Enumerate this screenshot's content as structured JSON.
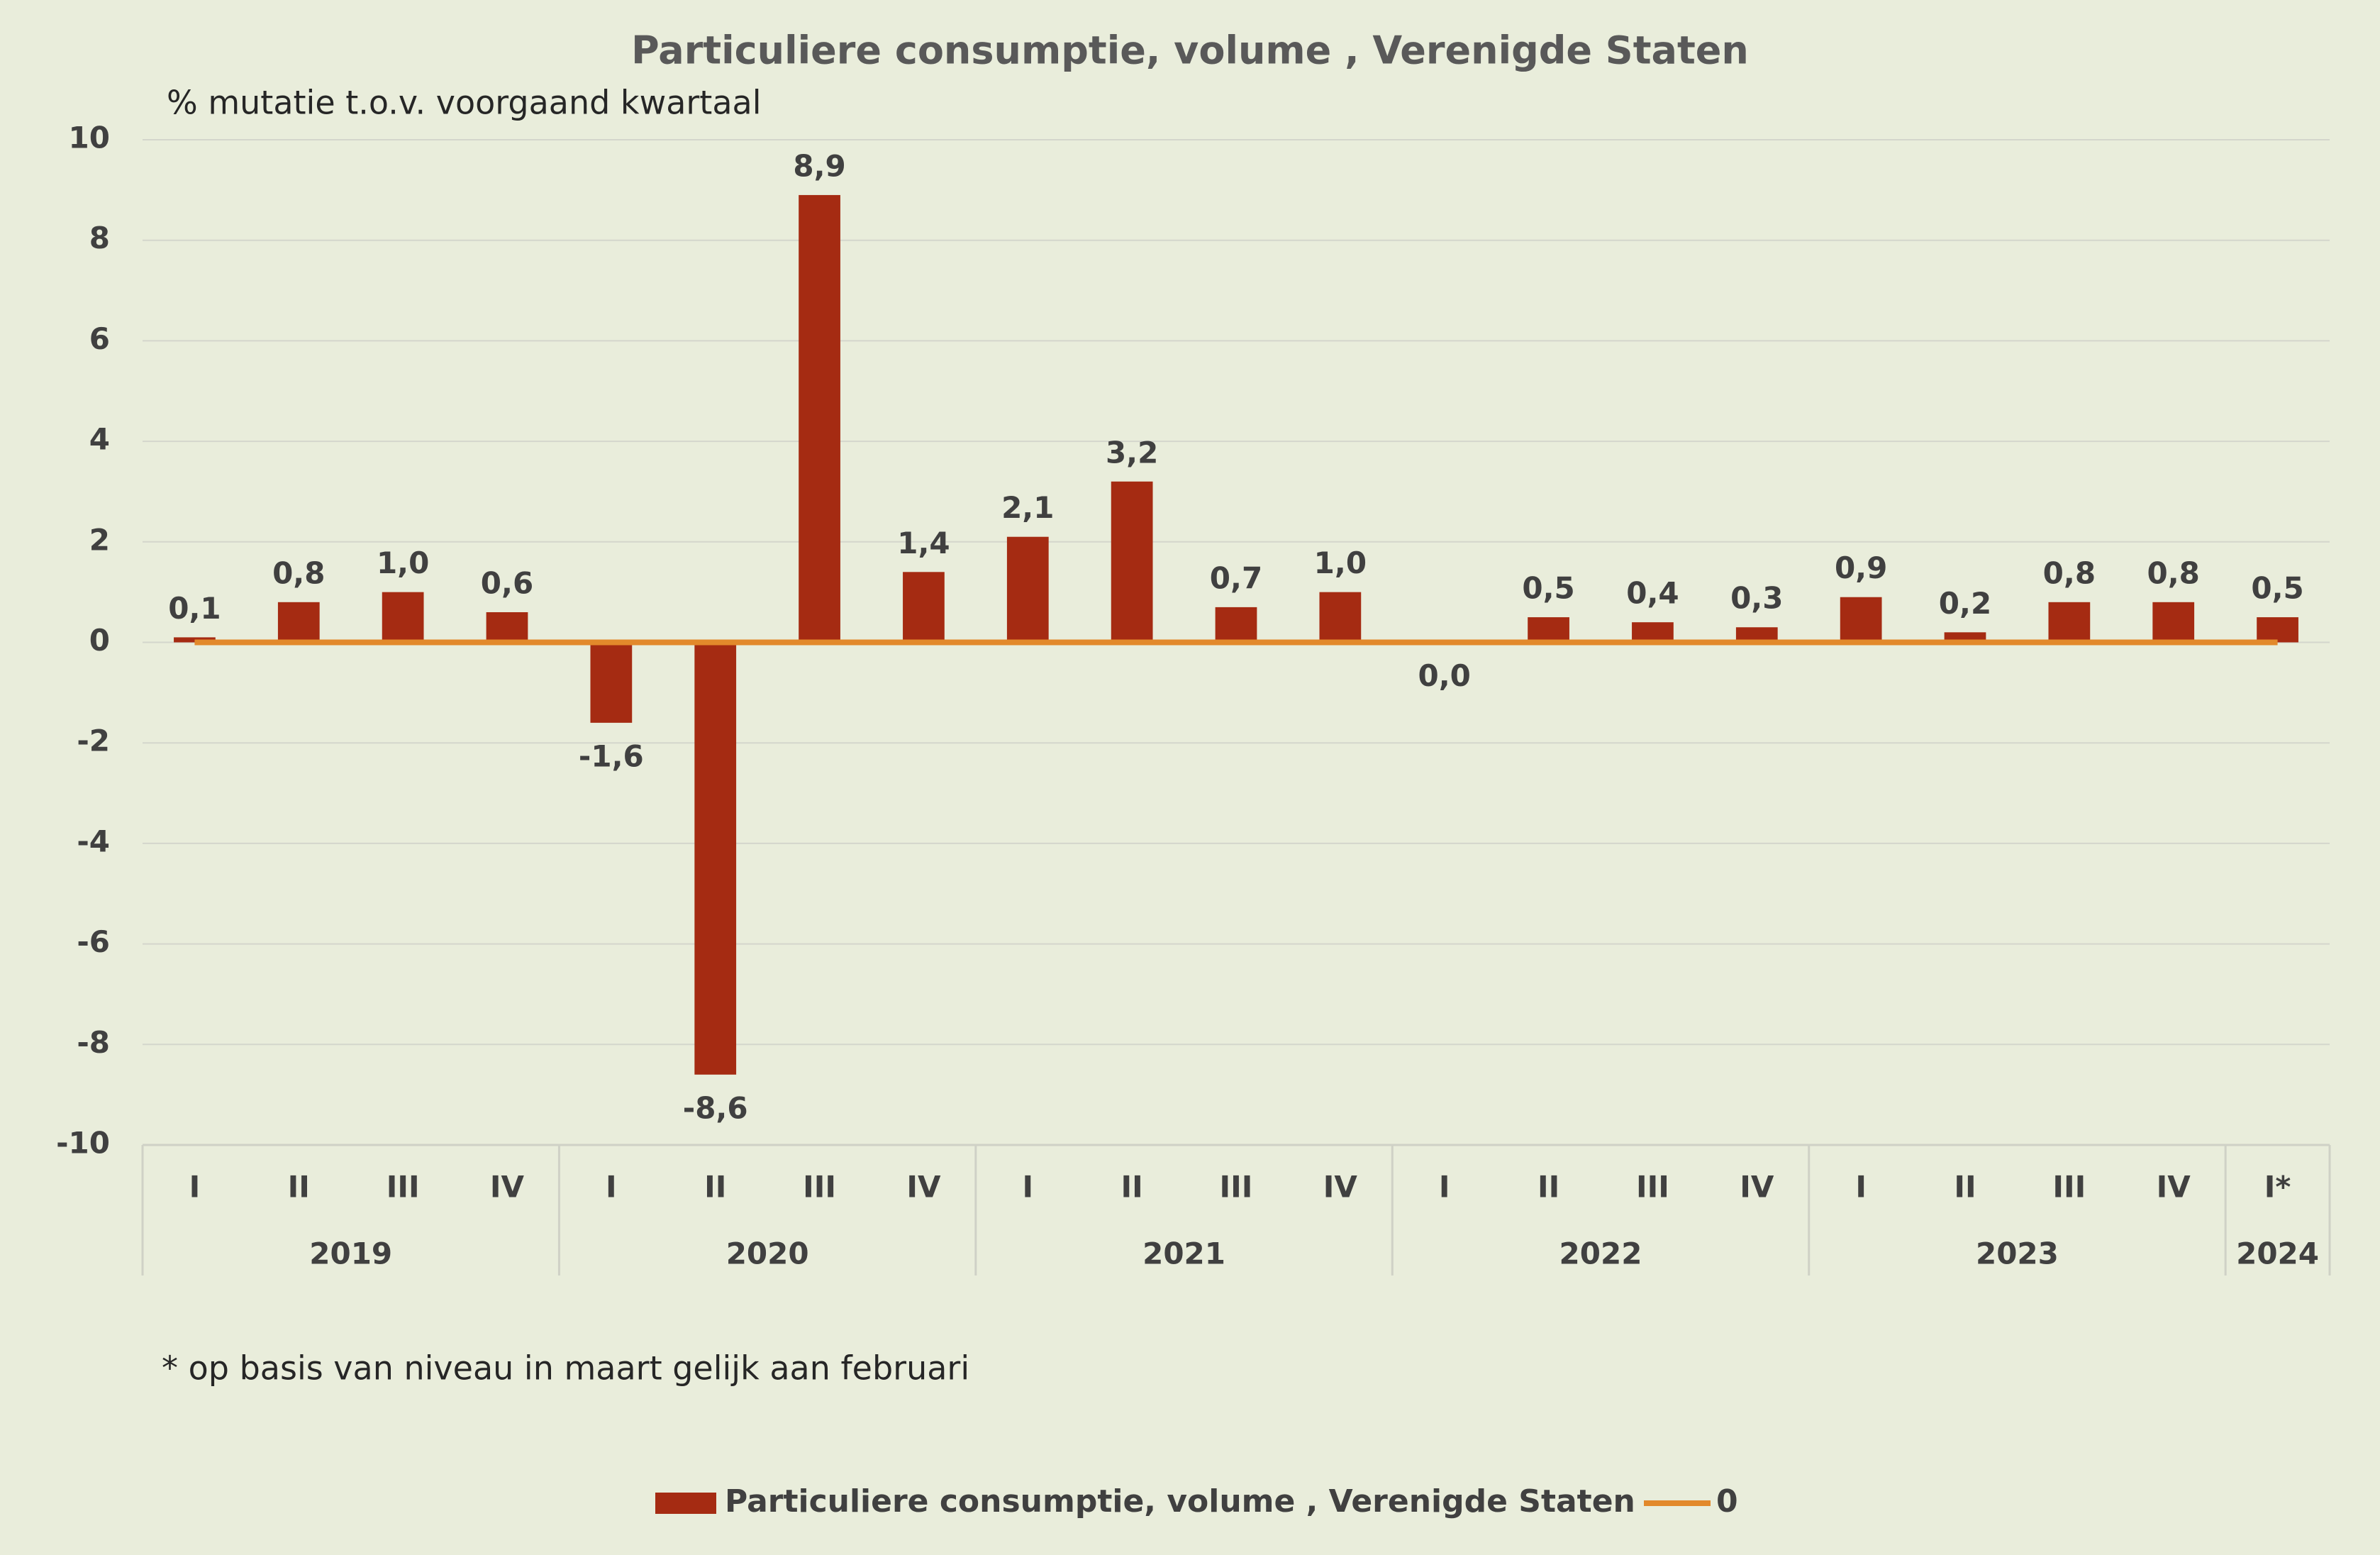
{
  "chart_data": {
    "type": "bar",
    "title": "Particuliere consumptie, volume , Verenigde Staten",
    "subtitle": "% mutatie t.o.v. voorgaand kwartaal",
    "footnote": "* op basis van niveau in maart gelijk aan februari",
    "categories": [
      "I",
      "II",
      "III",
      "IV",
      "I",
      "II",
      "III",
      "IV",
      "I",
      "II",
      "III",
      "IV",
      "I",
      "II",
      "III",
      "IV",
      "I",
      "II",
      "III",
      "IV",
      "I*"
    ],
    "groups": [
      {
        "label": "2019",
        "span": 4
      },
      {
        "label": "2020",
        "span": 4
      },
      {
        "label": "2021",
        "span": 4
      },
      {
        "label": "2022",
        "span": 4
      },
      {
        "label": "2023",
        "span": 4
      },
      {
        "label": "2024",
        "span": 1
      }
    ],
    "series": [
      {
        "name": "Particuliere consumptie, volume , Verenigde Staten",
        "type": "bar",
        "color": "#a52b12",
        "values": [
          0.1,
          0.8,
          1.0,
          0.6,
          -1.6,
          -8.6,
          8.9,
          1.4,
          2.1,
          3.2,
          0.7,
          1.0,
          0.0,
          0.5,
          0.4,
          0.3,
          0.9,
          0.2,
          0.8,
          0.8,
          0.5
        ],
        "value_labels": [
          "0,1",
          "0,8",
          "1,0",
          "0,6",
          "-1,6",
          "-8,6",
          "8,9",
          "1,4",
          "2,1",
          "3,2",
          "0,7",
          "1,0",
          "0,0",
          "0,5",
          "0,4",
          "0,3",
          "0,9",
          "0,2",
          "0,8",
          "0,8",
          "0,5"
        ]
      },
      {
        "name": "0",
        "type": "line",
        "color": "#e2892b",
        "values": [
          0,
          0,
          0,
          0,
          0,
          0,
          0,
          0,
          0,
          0,
          0,
          0,
          0,
          0,
          0,
          0,
          0,
          0,
          0,
          0,
          0
        ]
      }
    ],
    "ylim": [
      -10,
      10
    ],
    "yticks": [
      -10,
      -8,
      -6,
      -4,
      -2,
      0,
      2,
      4,
      6,
      8,
      10
    ],
    "grid": true,
    "legend": "bottom"
  }
}
